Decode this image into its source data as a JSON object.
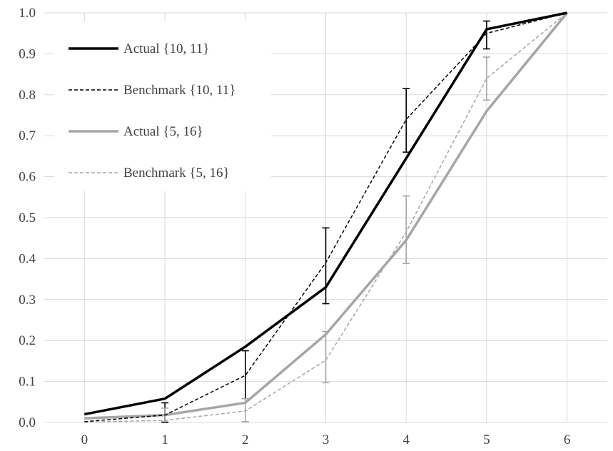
{
  "chart_data": {
    "type": "line",
    "title": "",
    "xlabel": "",
    "ylabel": "",
    "x": [
      0,
      1,
      2,
      3,
      4,
      5,
      6
    ],
    "xlim": [
      -0.5,
      6.5
    ],
    "ylim": [
      0,
      1.0
    ],
    "x_ticks": [
      "0",
      "1",
      "2",
      "3",
      "4",
      "5",
      "6"
    ],
    "y_ticks": [
      "0.0",
      "0.1",
      "0.2",
      "0.3",
      "0.4",
      "0.5",
      "0.6",
      "0.7",
      "0.8",
      "0.9",
      "1.0"
    ],
    "grid": true,
    "legend_position": "top-left",
    "series": [
      {
        "name": "Actual {10, 11}",
        "color": "#000000",
        "style": "solid",
        "values": [
          0.02,
          0.058,
          0.185,
          0.33,
          0.645,
          0.96,
          1.0
        ],
        "error_bars": [
          {
            "x": 1,
            "low": 0.0,
            "high": 0.048
          },
          {
            "x": 2,
            "low": 0.058,
            "high": 0.175
          },
          {
            "x": 3,
            "low": 0.29,
            "high": 0.475
          },
          {
            "x": 4,
            "low": 0.66,
            "high": 0.815
          },
          {
            "x": 5,
            "low": 0.912,
            "high": 0.98
          }
        ]
      },
      {
        "name": "Benchmark {10, 11}",
        "color": "#000000",
        "style": "dashed",
        "values": [
          0.002,
          0.018,
          0.115,
          0.39,
          0.74,
          0.95,
          1.0
        ]
      },
      {
        "name": "Actual {5, 16}",
        "color": "#a6a6a6",
        "style": "solid",
        "values": [
          0.01,
          0.018,
          0.048,
          0.215,
          0.445,
          0.76,
          1.0
        ],
        "error_bars": [
          {
            "x": 1,
            "low": 0.002,
            "high": 0.035
          },
          {
            "x": 2,
            "low": 0.002,
            "high": 0.058
          },
          {
            "x": 3,
            "low": 0.097,
            "high": 0.222
          },
          {
            "x": 4,
            "low": 0.388,
            "high": 0.553
          },
          {
            "x": 5,
            "low": 0.787,
            "high": 0.892
          }
        ]
      },
      {
        "name": "Benchmark {5, 16}",
        "color": "#a6a6a6",
        "style": "dashed",
        "values": [
          0.001,
          0.005,
          0.028,
          0.152,
          0.465,
          0.84,
          1.0
        ]
      }
    ]
  }
}
